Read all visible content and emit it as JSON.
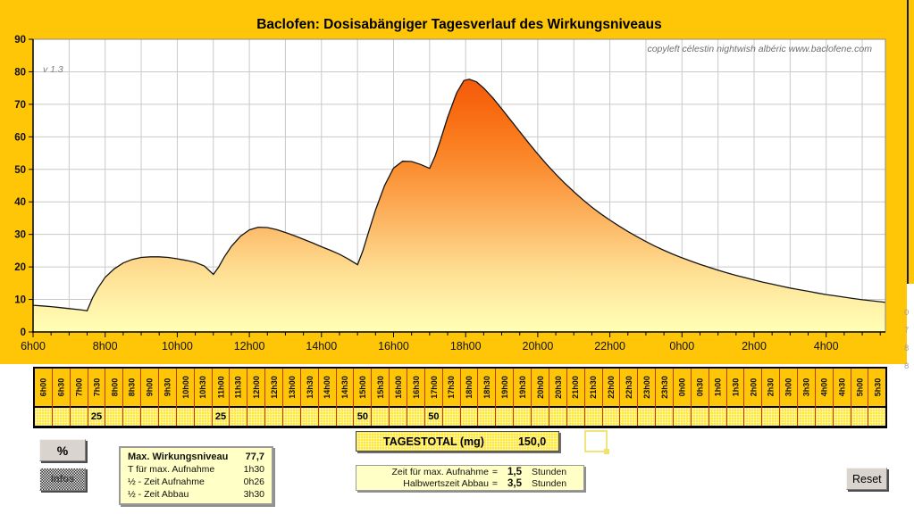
{
  "header": {
    "title": "Baclofen: Dosisabängiger Tagesverlauf des Wirkungsniveaus",
    "version": "v 1.3",
    "credits": "copyleft  célestin  nightwish  albéric   www.baclofene.com"
  },
  "chart_data": {
    "type": "area",
    "title": "Baclofen: Dosisabängiger Tagesverlauf des Wirkungsniveaus",
    "xlabel": "",
    "ylabel": "",
    "ylim": [
      0,
      90
    ],
    "y_ticks": [
      0,
      10,
      20,
      30,
      40,
      50,
      60,
      70,
      80,
      90
    ],
    "x_tick_labels": [
      "6h00",
      "8h00",
      "10h00",
      "12h00",
      "14h00",
      "16h00",
      "18h00",
      "20h00",
      "22h00",
      "0h00",
      "2h00",
      "4h00"
    ],
    "x_range_hours": [
      6,
      29.65
    ],
    "grid": true,
    "legend": "none",
    "peak_value": 77.7,
    "doses": [
      {
        "time": "7h30",
        "mg": 25
      },
      {
        "time": "11h00",
        "mg": 25
      },
      {
        "time": "15h00",
        "mg": 50
      },
      {
        "time": "17h00",
        "mg": 50
      }
    ],
    "series": [
      {
        "name": "Wirkungsniveau",
        "points": [
          [
            6,
            8.2
          ],
          [
            6.25,
            8.0
          ],
          [
            6.5,
            7.8
          ],
          [
            6.75,
            7.5
          ],
          [
            7,
            7.2
          ],
          [
            7.25,
            6.9
          ],
          [
            7.4,
            6.7
          ],
          [
            7.5,
            6.5
          ],
          [
            7.65,
            10.5
          ],
          [
            7.8,
            13.5
          ],
          [
            8,
            16.8
          ],
          [
            8.25,
            19.4
          ],
          [
            8.5,
            21.2
          ],
          [
            8.75,
            22.3
          ],
          [
            9,
            22.9
          ],
          [
            9.25,
            23.1
          ],
          [
            9.5,
            23.1
          ],
          [
            9.75,
            22.9
          ],
          [
            10,
            22.5
          ],
          [
            10.25,
            22.0
          ],
          [
            10.5,
            21.4
          ],
          [
            10.75,
            20.3
          ],
          [
            11,
            17.7
          ],
          [
            11.15,
            20.0
          ],
          [
            11.3,
            23.0
          ],
          [
            11.5,
            26.3
          ],
          [
            11.75,
            29.4
          ],
          [
            12,
            31.4
          ],
          [
            12.25,
            32.2
          ],
          [
            12.5,
            32.1
          ],
          [
            12.75,
            31.5
          ],
          [
            13,
            30.6
          ],
          [
            13.25,
            29.6
          ],
          [
            13.5,
            28.5
          ],
          [
            13.75,
            27.4
          ],
          [
            14,
            26.2
          ],
          [
            14.25,
            25.1
          ],
          [
            14.5,
            23.9
          ],
          [
            14.75,
            22.4
          ],
          [
            15,
            20.7
          ],
          [
            15.15,
            25.0
          ],
          [
            15.3,
            30.5
          ],
          [
            15.5,
            37.5
          ],
          [
            15.75,
            45.0
          ],
          [
            16,
            50.4
          ],
          [
            16.25,
            52.5
          ],
          [
            16.5,
            52.4
          ],
          [
            16.75,
            51.5
          ],
          [
            17,
            50.3
          ],
          [
            17.15,
            54.0
          ],
          [
            17.3,
            59.0
          ],
          [
            17.5,
            66.0
          ],
          [
            17.75,
            73.5
          ],
          [
            17.95,
            77.3
          ],
          [
            18.1,
            77.7
          ],
          [
            18.3,
            76.9
          ],
          [
            18.5,
            75.0
          ],
          [
            18.75,
            72.0
          ],
          [
            19,
            68.6
          ],
          [
            19.25,
            65.1
          ],
          [
            19.5,
            61.6
          ],
          [
            19.75,
            58.1
          ],
          [
            20,
            54.7
          ],
          [
            20.25,
            51.5
          ],
          [
            20.5,
            48.5
          ],
          [
            20.75,
            45.7
          ],
          [
            21,
            43.1
          ],
          [
            21.25,
            40.7
          ],
          [
            21.5,
            38.4
          ],
          [
            21.75,
            36.3
          ],
          [
            22,
            34.4
          ],
          [
            22.25,
            32.6
          ],
          [
            22.5,
            30.9
          ],
          [
            22.75,
            29.3
          ],
          [
            23,
            27.8
          ],
          [
            23.25,
            26.4
          ],
          [
            23.5,
            25.1
          ],
          [
            23.75,
            23.9
          ],
          [
            24,
            22.8
          ],
          [
            24.25,
            21.8
          ],
          [
            24.5,
            20.8
          ],
          [
            24.75,
            19.9
          ],
          [
            25,
            19.0
          ],
          [
            25.25,
            18.2
          ],
          [
            25.5,
            17.4
          ],
          [
            25.75,
            16.7
          ],
          [
            26,
            16.0
          ],
          [
            26.25,
            15.3
          ],
          [
            26.5,
            14.7
          ],
          [
            26.75,
            14.1
          ],
          [
            27,
            13.5
          ],
          [
            27.25,
            13.0
          ],
          [
            27.5,
            12.5
          ],
          [
            27.75,
            12.0
          ],
          [
            28,
            11.5
          ],
          [
            28.25,
            11.1
          ],
          [
            28.5,
            10.7
          ],
          [
            28.75,
            10.3
          ],
          [
            29,
            9.9
          ],
          [
            29.25,
            9.6
          ],
          [
            29.5,
            9.3
          ],
          [
            29.65,
            9.1
          ]
        ]
      }
    ]
  },
  "schedule": {
    "times": [
      "6h00",
      "6h30",
      "7h00",
      "7h30",
      "8h00",
      "8h30",
      "9h00",
      "9h30",
      "10h00",
      "10h30",
      "11h00",
      "11h30",
      "12h00",
      "12h30",
      "13h00",
      "13h30",
      "14h00",
      "14h30",
      "15h00",
      "15h30",
      "16h00",
      "16h30",
      "17h00",
      "17h30",
      "18h00",
      "18h30",
      "19h00",
      "19h30",
      "20h00",
      "20h30",
      "21h00",
      "21h30",
      "22h00",
      "22h30",
      "23h00",
      "23h30",
      "0h00",
      "0h30",
      "1h00",
      "1h30",
      "2h00",
      "2h30",
      "3h00",
      "3h30",
      "4h00",
      "4h30",
      "5h00",
      "5h30"
    ],
    "doses": [
      "",
      "",
      "",
      "25",
      "",
      "",
      "",
      "",
      "",
      "",
      "25",
      "",
      "",
      "",
      "",
      "",
      "",
      "",
      "50",
      "",
      "",
      "",
      "50",
      "",
      "",
      "",
      "",
      "",
      "",
      "",
      "",
      "",
      "",
      "",
      "",
      "",
      "",
      "",
      "",
      "",
      "",
      "",
      "",
      "",
      "",
      "",
      "",
      ""
    ]
  },
  "total": {
    "label": "TAGESTOTAL (mg)",
    "value": "150,0"
  },
  "stats": {
    "rows": [
      {
        "label": "Max. Wirkungsniveau",
        "value": "77,7"
      },
      {
        "label": "T für max. Aufnahme",
        "value": "1h30"
      },
      {
        "label": "½ - Zeit Aufnahme",
        "value": "0h26"
      },
      {
        "label": "½ - Zeit Abbau",
        "value": "3h30"
      }
    ]
  },
  "params": {
    "rows": [
      {
        "label": "Zeit für max. Aufnahme",
        "eq": "=",
        "value": "1,5",
        "unit": "Stunden"
      },
      {
        "label": "Halbwertszeit Abbau",
        "eq": "=",
        "value": "3,5",
        "unit": "Stunden"
      }
    ]
  },
  "buttons": {
    "percent": "%",
    "infos": "Infos",
    "reset": "Reset"
  },
  "margin_digits": [
    "0",
    "7",
    "8",
    "8"
  ],
  "colors": {
    "gold": "#FFC608",
    "plot_bg": "#FFFFFF",
    "grid": "#C9C9C9",
    "curve": "#141414",
    "cell_border": "#C63A00",
    "dose_bg": "#FFE93F",
    "panel_bg": "#FFFFC6",
    "button_bg": "#D9D5CE",
    "selection_outline": "#F2E47C",
    "fill_stops": [
      [
        "0",
        "#EC4506"
      ],
      [
        "0.111",
        "#F2570B"
      ],
      [
        "0.222",
        "#F7670F"
      ],
      [
        "0.333",
        "#FA7A1C"
      ],
      [
        "0.444",
        "#FB8F33"
      ],
      [
        "0.556",
        "#FCA751"
      ],
      [
        "0.667",
        "#FDC170"
      ],
      [
        "0.778",
        "#FEDB8F"
      ],
      [
        "0.889",
        "#FFEFA5"
      ],
      [
        "1",
        "#FFFFB5"
      ]
    ]
  }
}
